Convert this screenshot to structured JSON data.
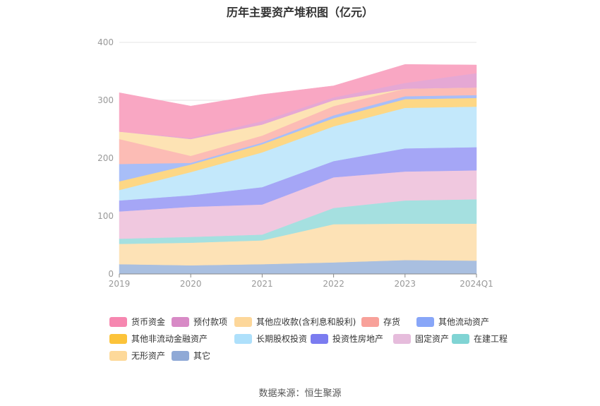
{
  "title": "历年主要资产堆积图（亿元）",
  "source": "数据来源：恒生聚源",
  "chart_data": {
    "type": "area",
    "stacked": true,
    "x": [
      "2019",
      "2020",
      "2021",
      "2022",
      "2023",
      "2024Q1"
    ],
    "ylim": [
      0,
      400
    ],
    "yticks": [
      "0",
      "100",
      "200",
      "300",
      "400"
    ],
    "grid": true,
    "legend_position": "bottom",
    "series": [
      {
        "name": "其它",
        "color": "#a9bfe0",
        "values": [
          17,
          15,
          17,
          20,
          24,
          23
        ]
      },
      {
        "name": "无形资产",
        "color": "#fde2b6",
        "values": [
          35,
          39,
          41,
          66,
          63,
          64
        ]
      },
      {
        "name": "在建工程",
        "color": "#a5e0e0",
        "values": [
          9,
          10,
          10,
          28,
          40,
          42
        ]
      },
      {
        "name": "固定资产",
        "color": "#f0c8df",
        "values": [
          47,
          52,
          52,
          53,
          50,
          50
        ]
      },
      {
        "name": "投资性房地产",
        "color": "#a5a6f6",
        "values": [
          19,
          20,
          30,
          28,
          40,
          40
        ]
      },
      {
        "name": "长期股权投资",
        "color": "#c3e8fb",
        "values": [
          18,
          40,
          60,
          60,
          70,
          70
        ]
      },
      {
        "name": "其他非流动金融资产",
        "color": "#fdd785",
        "values": [
          15,
          13,
          14,
          14,
          15,
          15
        ]
      },
      {
        "name": "其他流动资产",
        "color": "#a8bef8",
        "values": [
          30,
          3,
          3,
          5,
          5,
          5
        ]
      },
      {
        "name": "存货",
        "color": "#fcbcb5",
        "values": [
          43,
          12,
          12,
          16,
          13,
          13
        ]
      },
      {
        "name": "其他应收款(含利息和股利)",
        "color": "#fde3b4",
        "values": [
          13,
          29,
          19,
          10,
          0,
          0
        ]
      },
      {
        "name": "预付款项",
        "color": "#e5a8d4",
        "values": [
          0,
          2,
          6,
          5,
          10,
          25
        ]
      },
      {
        "name": "货币资金",
        "color": "#f9a7c3",
        "values": [
          67,
          55,
          46,
          20,
          32,
          14
        ]
      }
    ],
    "legend": [
      {
        "name": "货币资金",
        "color": "#f687b0"
      },
      {
        "name": "预付款项",
        "color": "#d88ac6"
      },
      {
        "name": "其他应收款(含利息和股利)",
        "color": "#fdd79a"
      },
      {
        "name": "存货",
        "color": "#f8a19a"
      },
      {
        "name": "其他流动资产",
        "color": "#88a6f8"
      },
      {
        "name": "其他非流动金融资产",
        "color": "#fcc33a"
      },
      {
        "name": "长期股权投资",
        "color": "#aee0fb"
      },
      {
        "name": "投资性房地产",
        "color": "#7b7cf0"
      },
      {
        "name": "固定资产",
        "color": "#e6bcdc"
      },
      {
        "name": "在建工程",
        "color": "#80d4d4"
      },
      {
        "name": "无形资产",
        "color": "#fdd99a"
      },
      {
        "name": "其它",
        "color": "#8fa9d6"
      }
    ]
  }
}
